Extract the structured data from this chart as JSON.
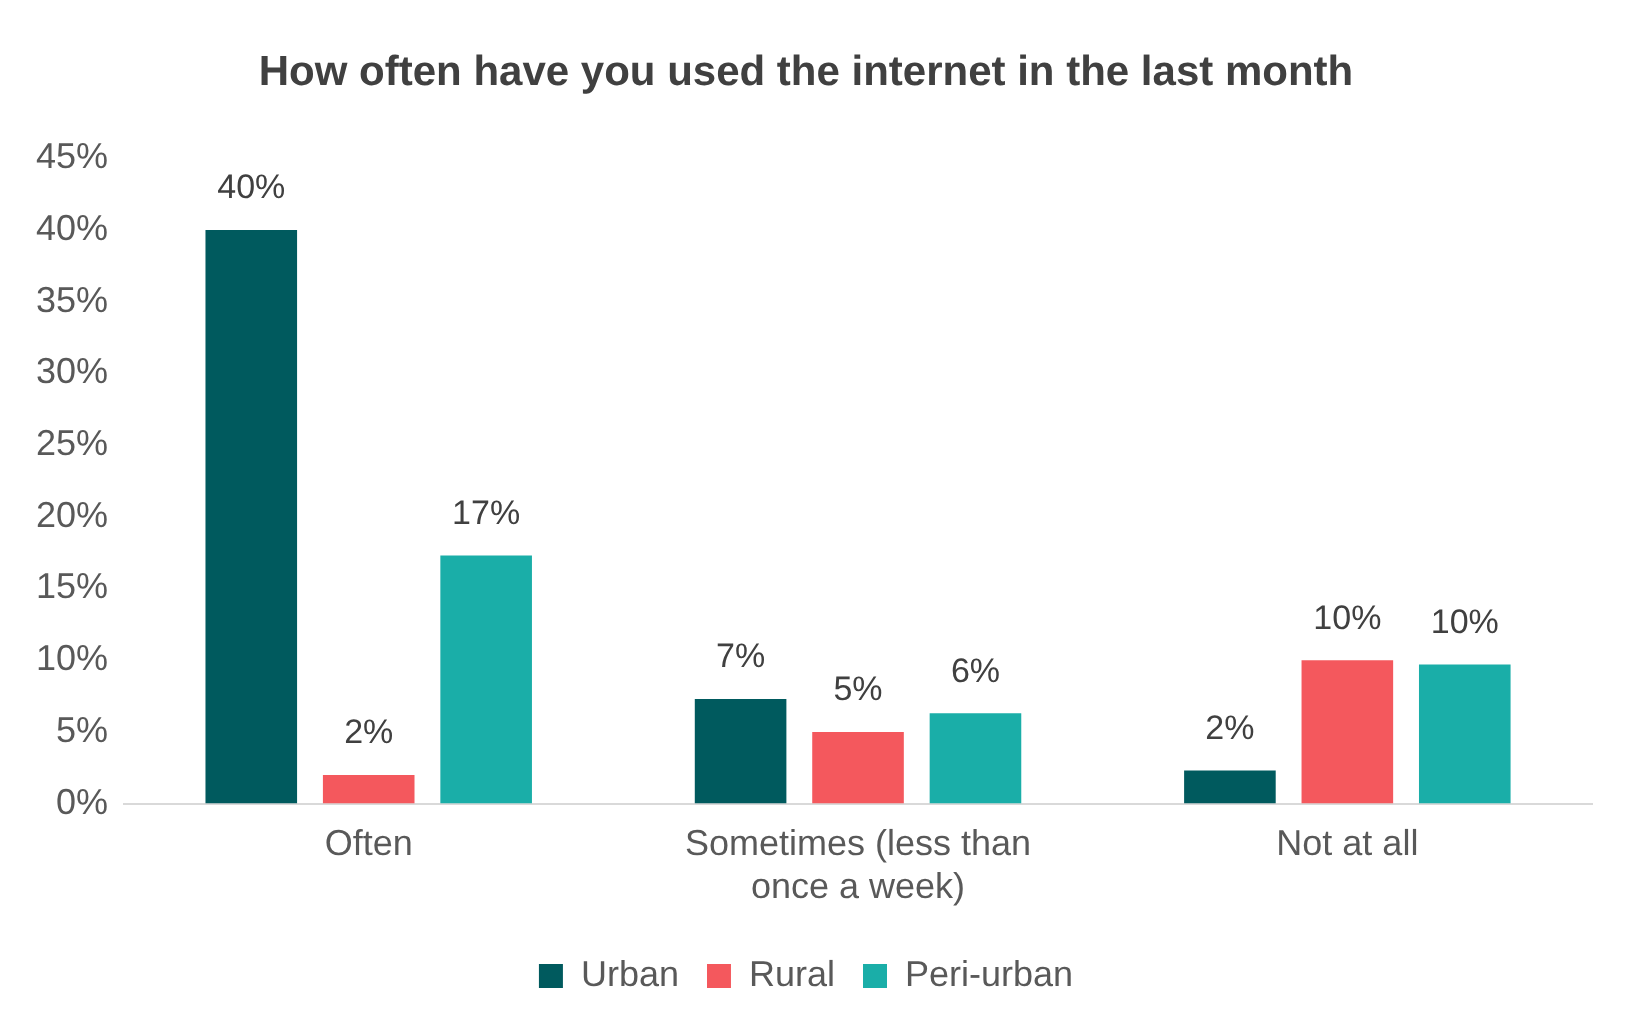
{
  "chart_data": {
    "type": "bar",
    "title": "How often have you used the internet in the last month",
    "categories": [
      "Often",
      "Sometimes (less than once a week)",
      "Not at all"
    ],
    "series": [
      {
        "name": "Urban",
        "color": "#005a5e",
        "values": [
          40,
          7.3,
          2.3
        ],
        "value_labels": [
          "40%",
          "7%",
          "2%"
        ]
      },
      {
        "name": "Rural",
        "color": "#f4585d",
        "values": [
          2,
          5,
          10
        ],
        "value_labels": [
          "2%",
          "5%",
          "10%"
        ]
      },
      {
        "name": "Peri-urban",
        "color": "#1aaea8",
        "values": [
          17.3,
          6.3,
          9.7
        ],
        "value_labels": [
          "17%",
          "6%",
          "10%"
        ]
      }
    ],
    "ylim": [
      0,
      45
    ],
    "yticks": [
      {
        "value": 0,
        "label": "0%"
      },
      {
        "value": 5,
        "label": "5%"
      },
      {
        "value": 10,
        "label": "10%"
      },
      {
        "value": 15,
        "label": "15%"
      },
      {
        "value": 20,
        "label": "20%"
      },
      {
        "value": 25,
        "label": "25%"
      },
      {
        "value": 30,
        "label": "30%"
      },
      {
        "value": 35,
        "label": "35%"
      },
      {
        "value": 40,
        "label": "40%"
      },
      {
        "value": 45,
        "label": "45%"
      }
    ],
    "grid": false,
    "legend": "bottom"
  }
}
